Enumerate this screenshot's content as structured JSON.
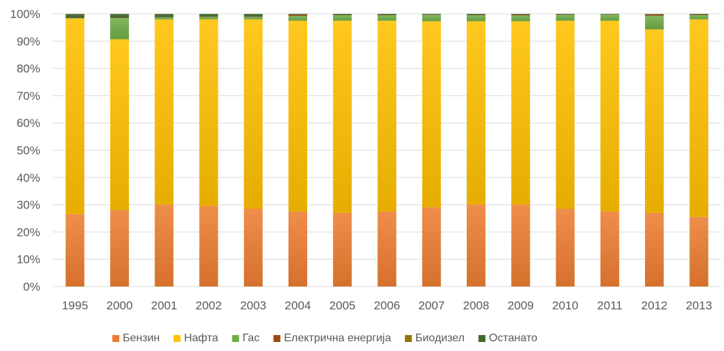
{
  "chart_data": {
    "type": "bar",
    "stacked": true,
    "percent": true,
    "categories": [
      "1995",
      "2000",
      "2001",
      "2002",
      "2003",
      "2004",
      "2005",
      "2006",
      "2007",
      "2008",
      "2009",
      "2010",
      "2011",
      "2012",
      "2013"
    ],
    "series": [
      {
        "name": "Бензин",
        "color": "#ed7d31",
        "values": [
          26.5,
          28,
          30,
          29.5,
          28.5,
          27.5,
          27,
          27.5,
          29,
          30,
          30,
          28.5,
          27.5,
          27,
          25.5
        ]
      },
      {
        "name": "Нафта",
        "color": "#ffc000",
        "values": [
          71.8,
          62.7,
          68,
          68.5,
          69.5,
          70,
          70.5,
          70,
          68.3,
          67.3,
          67.3,
          69,
          70,
          67.3,
          72.5
        ]
      },
      {
        "name": "Гас",
        "color": "#70ad47",
        "values": [
          0.2,
          7.8,
          0.7,
          0.9,
          0.9,
          1.7,
          2,
          2,
          2.3,
          2.2,
          2.1,
          2.1,
          2.2,
          5,
          1.5
        ]
      },
      {
        "name": "Електрична енергија",
        "color": "#9e480e",
        "values": [
          0.1,
          0.1,
          0.1,
          0.1,
          0.1,
          0.5,
          0.1,
          0.1,
          0.1,
          0.1,
          0.3,
          0.1,
          0.1,
          0.5,
          0.2
        ]
      },
      {
        "name": "Биодизел",
        "color": "#997300",
        "values": [
          0,
          0,
          0,
          0,
          0,
          0,
          0,
          0,
          0,
          0,
          0,
          0,
          0,
          0,
          0
        ]
      },
      {
        "name": "Останато",
        "color": "#43682b",
        "values": [
          1.4,
          1.4,
          1.2,
          1,
          1,
          0.3,
          0.4,
          0.4,
          0.3,
          0.4,
          0.3,
          0.3,
          0.2,
          0.2,
          0.3
        ]
      }
    ],
    "yticks": [
      "0%",
      "10%",
      "20%",
      "30%",
      "40%",
      "50%",
      "60%",
      "70%",
      "80%",
      "90%",
      "100%"
    ],
    "ylim": [
      0,
      100
    ],
    "grid": true,
    "legend": "bottom",
    "title": "",
    "xlabel": "",
    "ylabel": ""
  }
}
